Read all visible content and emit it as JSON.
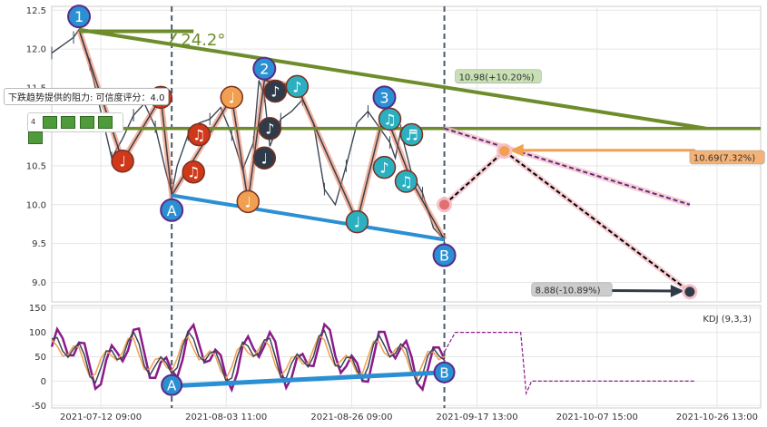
{
  "chart_data": {
    "type": "line",
    "main_panel": {
      "y_ticks": [
        "12.5",
        "12.0",
        "11.5",
        "11.0",
        "10.5",
        "10.0",
        "9.5",
        "9.0"
      ],
      "ylim": [
        8.75,
        12.55
      ],
      "price_series_approx": [
        [
          0,
          11.95
        ],
        [
          2,
          12.05
        ],
        [
          4,
          12.15
        ],
        [
          5,
          12.25
        ],
        [
          7,
          11.8
        ],
        [
          9,
          11.2
        ],
        [
          11,
          10.6
        ],
        [
          13,
          10.85
        ],
        [
          15,
          11.15
        ],
        [
          17,
          11.3
        ],
        [
          19,
          11.0
        ],
        [
          21,
          10.4
        ],
        [
          22,
          10.15
        ],
        [
          23,
          10.5
        ],
        [
          25,
          10.9
        ],
        [
          27,
          11.05
        ],
        [
          29,
          11.1
        ],
        [
          31,
          11.25
        ],
        [
          33,
          10.9
        ],
        [
          35,
          10.45
        ],
        [
          37,
          10.8
        ],
        [
          38,
          11.6
        ],
        [
          39,
          11.4
        ],
        [
          40,
          10.75
        ],
        [
          42,
          11.1
        ],
        [
          44,
          11.2
        ],
        [
          46,
          11.35
        ],
        [
          48,
          11.05
        ],
        [
          50,
          10.2
        ],
        [
          52,
          10.0
        ],
        [
          54,
          10.5
        ],
        [
          56,
          11.05
        ],
        [
          58,
          11.2
        ],
        [
          60,
          11.0
        ],
        [
          62,
          10.8
        ],
        [
          63,
          10.6
        ],
        [
          64,
          10.95
        ],
        [
          66,
          10.4
        ],
        [
          68,
          10.15
        ],
        [
          70,
          9.7
        ],
        [
          72,
          9.55
        ]
      ],
      "trend_lines": [
        {
          "name": "resistance",
          "from": [
            5,
            12.25
          ],
          "to": [
            120,
            10.98
          ],
          "color": "#6e8c2a"
        },
        {
          "name": "horizontal",
          "y": 10.98,
          "color": "#6e8c2a"
        },
        {
          "name": "support",
          "from": [
            22,
            10.12
          ],
          "to": [
            72,
            9.55
          ],
          "color": "#2b8fd3"
        }
      ],
      "angle_label": "∠24.2°",
      "annotations": [
        {
          "text": "10.98(+10.20%)",
          "x": 74,
          "y": 11.62,
          "bg": "#c8e0b4",
          "fg": "#333333"
        },
        {
          "text": "10.69(7.32%)",
          "x": 117,
          "y": 10.58,
          "bg": "#f4b277",
          "fg": "#333333"
        },
        {
          "text": "8.88(-10.89%)",
          "x": 88,
          "y": 8.88,
          "bg": "#cccccc",
          "fg": "#333333"
        }
      ],
      "forecast_lines": [
        {
          "from": [
            72,
            10.0
          ],
          "to": [
            83,
            10.69
          ],
          "color": "#f4c0c8",
          "style": "solid"
        },
        {
          "from": [
            72,
            10.0
          ],
          "to": [
            83,
            10.69
          ],
          "color": "#000000",
          "style": "dashed"
        },
        {
          "from": [
            83,
            10.69
          ],
          "to": [
            117,
            8.88
          ],
          "color": "#f4c0c8",
          "style": "solid"
        },
        {
          "from": [
            83,
            10.69
          ],
          "to": [
            117,
            8.88
          ],
          "color": "#000000",
          "style": "dashed"
        },
        {
          "from": [
            72,
            10.98
          ],
          "to": [
            117,
            10.0
          ],
          "color": "#f4c0c8",
          "style": "solid"
        },
        {
          "from": [
            72,
            10.98
          ],
          "to": [
            117,
            10.0
          ],
          "color": "#5b2a86",
          "style": "dashed"
        }
      ],
      "labels_wave": [
        {
          "text": "1",
          "x": 5,
          "y": 12.42
        },
        {
          "text": "2",
          "x": 39,
          "y": 11.75
        },
        {
          "text": "3",
          "x": 61,
          "y": 11.38
        },
        {
          "text": "A",
          "x": 22,
          "y": 9.93
        },
        {
          "text": "B",
          "x": 72,
          "y": 9.35
        }
      ],
      "note_markers": [
        {
          "x": 13,
          "y": 10.56,
          "color": "#d0381a",
          "glyph": "♩"
        },
        {
          "x": 20,
          "y": 11.38,
          "color": "#d0381a",
          "glyph": "♪"
        },
        {
          "x": 27,
          "y": 10.9,
          "color": "#d0381a",
          "glyph": "♫"
        },
        {
          "x": 26,
          "y": 10.42,
          "color": "#d0381a",
          "glyph": "♫"
        },
        {
          "x": 33,
          "y": 11.38,
          "color": "#f0a050",
          "glyph": "♩"
        },
        {
          "x": 36,
          "y": 10.04,
          "color": "#f0a050",
          "glyph": "♩"
        },
        {
          "x": 41,
          "y": 11.46,
          "color": "#2f3b48",
          "glyph": "♪"
        },
        {
          "x": 39,
          "y": 10.6,
          "color": "#2f3b48",
          "glyph": "♩"
        },
        {
          "x": 40,
          "y": 10.98,
          "color": "#2f3b48",
          "glyph": "♪"
        },
        {
          "x": 45,
          "y": 11.52,
          "color": "#2ab0c0",
          "glyph": "♪"
        },
        {
          "x": 56,
          "y": 9.78,
          "color": "#2ab0c0",
          "glyph": "♩"
        },
        {
          "x": 62,
          "y": 11.1,
          "color": "#2ab0c0",
          "glyph": "♫"
        },
        {
          "x": 66,
          "y": 10.9,
          "color": "#2ab0c0",
          "glyph": "♬"
        },
        {
          "x": 61,
          "y": 10.48,
          "color": "#2ab0c0",
          "glyph": "♪"
        },
        {
          "x": 65,
          "y": 10.3,
          "color": "#2ab0c0",
          "glyph": "♫"
        }
      ]
    },
    "kdj_panel": {
      "label": "KDJ (9,3,3)",
      "y_ticks": [
        "150",
        "100",
        "50",
        "0",
        "-50"
      ],
      "ylim": [
        -55,
        155
      ],
      "support_line": {
        "from": [
          22,
          -10
        ],
        "to": [
          72,
          18
        ]
      },
      "labels": [
        {
          "text": "A",
          "x": 22,
          "y": -8
        },
        {
          "text": "B",
          "x": 72,
          "y": 18
        }
      ]
    },
    "x_ticks": [
      {
        "label": "2021-07-12 09:00",
        "x": 9
      },
      {
        "label": "2021-08-03 11:00",
        "x": 32
      },
      {
        "label": "2021-08-26 09:00",
        "x": 55
      },
      {
        "label": "2021-09-17 13:00",
        "x": 78
      },
      {
        "label": "2021-10-07 15:00",
        "x": 100
      },
      {
        "label": "2021-10-26 13:00",
        "x": 122
      }
    ],
    "x_range": [
      0,
      130
    ],
    "vertical_markers": [
      22,
      72
    ],
    "grid": true
  },
  "tooltip": {
    "title": "下跌趋势提供的阻力: 可信度评分：4.0"
  },
  "rating": {
    "value": "4",
    "count": 5
  }
}
